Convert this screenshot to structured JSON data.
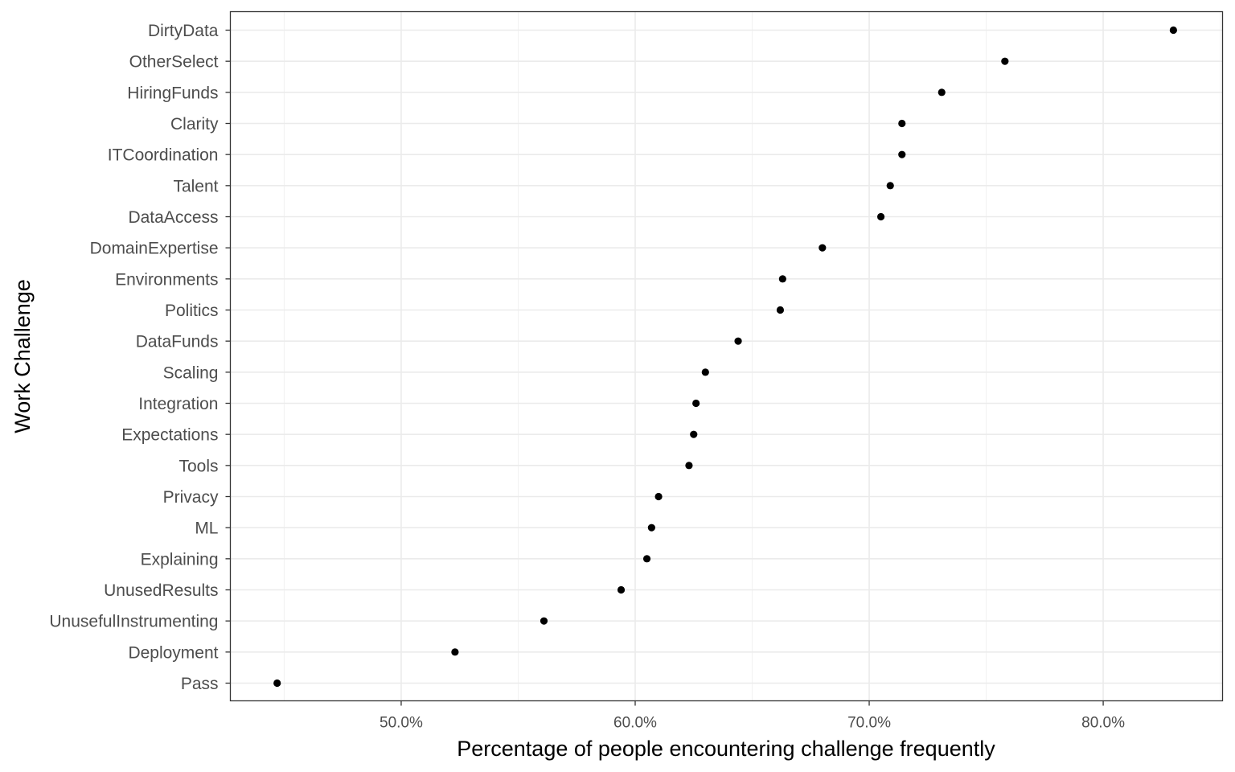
{
  "chart_data": {
    "type": "scatter",
    "xlabel": "Percentage of people encountering challenge frequently",
    "ylabel": "Work Challenge",
    "xlim": [
      0.427,
      0.851
    ],
    "x_ticks": [
      0.5,
      0.6,
      0.7,
      0.8
    ],
    "x_tick_labels": [
      "50.0%",
      "60.0%",
      "70.0%",
      "80.0%"
    ],
    "x_minor_ticks": [
      0.45,
      0.55,
      0.65,
      0.75,
      0.85
    ],
    "grid": true,
    "theme": "bw",
    "point_color": "#000000",
    "categories": [
      "DirtyData",
      "OtherSelect",
      "HiringFunds",
      "Clarity",
      "ITCoordination",
      "Talent",
      "DataAccess",
      "DomainExpertise",
      "Environments",
      "Politics",
      "DataFunds",
      "Scaling",
      "Integration",
      "Expectations",
      "Tools",
      "Privacy",
      "ML",
      "Explaining",
      "UnusedResults",
      "UnusefulInstrumenting",
      "Deployment",
      "Pass"
    ],
    "values": [
      0.83,
      0.758,
      0.731,
      0.714,
      0.714,
      0.709,
      0.705,
      0.68,
      0.663,
      0.662,
      0.644,
      0.63,
      0.626,
      0.625,
      0.623,
      0.61,
      0.607,
      0.605,
      0.594,
      0.561,
      0.523,
      0.447
    ]
  }
}
